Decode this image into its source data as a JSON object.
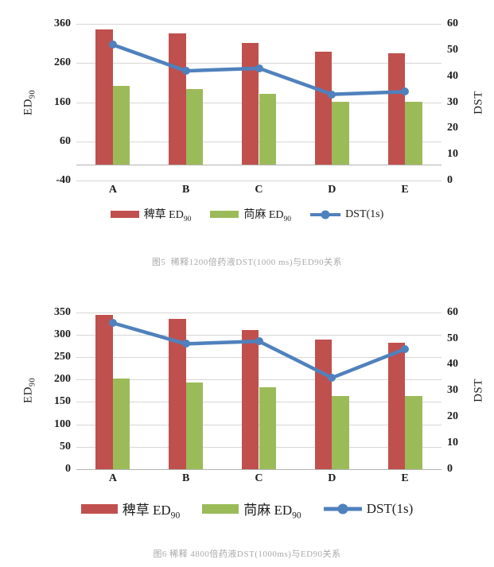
{
  "colors": {
    "background": "#ffffff",
    "bar_red": "#c0504d",
    "bar_green": "#9bbb59",
    "line_blue": "#4f81bd",
    "gridline": "#d6d6d6",
    "axis_line": "#b3b3b3",
    "tick_text": "#1c1c1c",
    "caption_text": "#a9a9a9"
  },
  "chart_data": [
    {
      "type": "bar",
      "subtype": "dual-axis bar+line combo",
      "categories": [
        "A",
        "B",
        "C",
        "D",
        "E"
      ],
      "series": [
        {
          "name": "稗草 ED90",
          "type": "bar",
          "axis": "left",
          "color": "#c0504d",
          "label_main": "稗草 ED",
          "label_sub": "90",
          "values": [
            345,
            335,
            312,
            290,
            284
          ]
        },
        {
          "name": "苘麻 ED90",
          "type": "bar",
          "axis": "left",
          "color": "#9bbb59",
          "label_main": "苘麻 ED",
          "label_sub": "90",
          "values": [
            202,
            193,
            181,
            161,
            161
          ]
        },
        {
          "name": "DST(1s)",
          "type": "line",
          "axis": "right",
          "color": "#4f81bd",
          "label_main": "DST(1s)",
          "label_sub": "",
          "values": [
            52,
            42,
            43,
            33,
            34
          ]
        }
      ],
      "left_axis": {
        "title": "ED",
        "title_sub": "90",
        "min": -40,
        "max": 360,
        "step": 100,
        "ticks": [
          360,
          260,
          160,
          60,
          -40
        ]
      },
      "right_axis": {
        "title": "DST",
        "min": 0,
        "max": 60,
        "step": 10,
        "ticks": [
          60,
          50,
          40,
          30,
          20,
          10,
          0
        ]
      },
      "bar_baseline": 0,
      "grid": true,
      "legend_position": "bottom",
      "caption": "图5  稀释1200倍药液DST(1000 ms)与ED90关系"
    },
    {
      "type": "bar",
      "subtype": "dual-axis bar+line combo",
      "categories": [
        "A",
        "B",
        "C",
        "D",
        "E"
      ],
      "series": [
        {
          "name": "稗草 ED90",
          "type": "bar",
          "axis": "left",
          "color": "#c0504d",
          "label_main": "稗草 ED",
          "label_sub": "90",
          "values": [
            345,
            335,
            310,
            289,
            283
          ]
        },
        {
          "name": "苘麻 ED90",
          "type": "bar",
          "axis": "left",
          "color": "#9bbb59",
          "label_main": "苘麻 ED",
          "label_sub": "90",
          "values": [
            202,
            193,
            182,
            163,
            164
          ]
        },
        {
          "name": "DST(1s)",
          "type": "line",
          "axis": "right",
          "color": "#4f81bd",
          "label_main": "DST(1s)",
          "label_sub": "",
          "values": [
            56,
            48,
            49,
            35,
            46
          ]
        }
      ],
      "left_axis": {
        "title": "ED",
        "title_sub": "90",
        "min": 0,
        "max": 350,
        "step": 50,
        "ticks": [
          350,
          300,
          250,
          200,
          150,
          100,
          50,
          0
        ]
      },
      "right_axis": {
        "title": "DST",
        "min": 0,
        "max": 60,
        "step": 10,
        "ticks": [
          60,
          50,
          40,
          30,
          20,
          10,
          0
        ]
      },
      "bar_baseline": 0,
      "grid": true,
      "legend_position": "bottom",
      "caption": "图6 稀释 4800倍药液DST(1000ms)与ED90关系"
    }
  ]
}
